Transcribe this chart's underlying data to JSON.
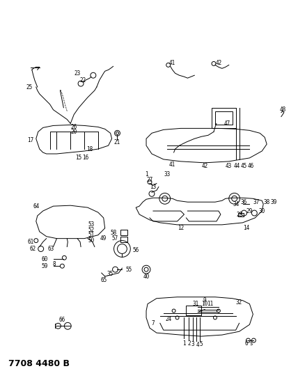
{
  "title": "7708 4480 B",
  "title_fontsize": 9,
  "title_fontweight": "bold",
  "bg_color": "#ffffff",
  "fig_width": 4.28,
  "fig_height": 5.33,
  "dpi": 100,
  "line_color": "#000000",
  "label_fontsize": 5.5,
  "label_color": "#000000"
}
